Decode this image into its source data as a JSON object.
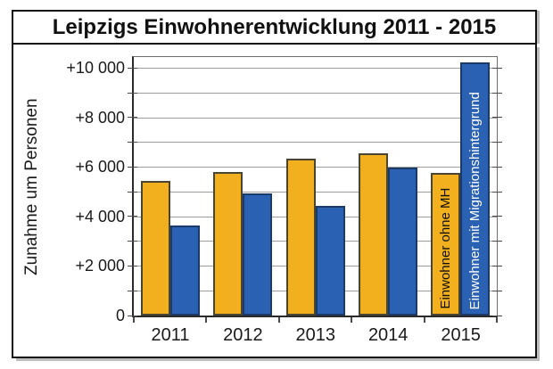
{
  "title": "Leipzigs Einwohnerentwicklung 2011 - 2015",
  "colors": {
    "series1_fill": "#F2B01E",
    "series1_border": "#4A4433",
    "series2_fill": "#2A61B2",
    "series2_border": "#1A3B69",
    "gridline": "#9C9C9C",
    "axis": "#2A2A2A"
  },
  "chart_data": {
    "type": "bar",
    "title": "Leipzigs Einwohnerentwicklung 2011 - 2015",
    "categories": [
      "2011",
      "2012",
      "2013",
      "2014",
      "2015"
    ],
    "series": [
      {
        "name": "Einwohner ohne MH",
        "fill": "#F2B01E",
        "border": "#4A4433",
        "label_color": "#111111",
        "values": [
          5450,
          5800,
          6350,
          6550,
          5750
        ]
      },
      {
        "name": "Einwohner mit Migrationshintergrund",
        "fill": "#2A61B2",
        "border": "#1A3B69",
        "label_color": "#FFFFFF",
        "values": [
          3650,
          4950,
          4450,
          6000,
          10250
        ]
      }
    ],
    "xlabel": "",
    "ylabel": "Zunahme um Personen",
    "ylim": [
      0,
      10450
    ],
    "ytick_major_step": 2000,
    "ytick_minor_step": 1000,
    "ytick_labels": [
      "0",
      "+2 000",
      "+4 000",
      "+6 000",
      "+8 000",
      "+10 000"
    ],
    "grid": true,
    "legend_position": "labels-inside-last-group-bars"
  }
}
